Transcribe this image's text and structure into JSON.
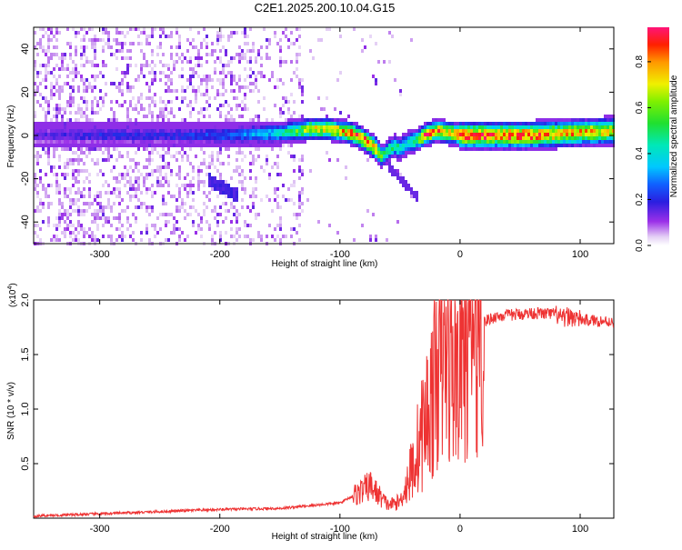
{
  "title": "C2E1.2025.200.10.04.G15",
  "chart_data": [
    {
      "type": "heatmap",
      "xlabel": "Height of straight line (km)",
      "ylabel": "Frequency (Hz)",
      "xlim": [
        -355,
        128
      ],
      "ylim": [
        -50,
        50
      ],
      "x_ticks": [
        -300,
        -200,
        -100,
        0,
        100
      ],
      "y_ticks": [
        -40,
        -20,
        0,
        20,
        40
      ],
      "colorbar": {
        "label": "Normalized spectral amplitude",
        "range": [
          0.0,
          0.95
        ],
        "ticks": [
          "0.0",
          "0.2",
          "0.4",
          "0.6",
          "0.8"
        ],
        "tick_values": [
          0.0,
          0.2,
          0.4,
          0.6,
          0.8
        ]
      },
      "ridge_x": [
        -355,
        -300,
        -250,
        -200,
        -150,
        -125,
        -110,
        -100,
        -90,
        -80,
        -70,
        -65,
        -60,
        -55,
        -50,
        -45,
        -40,
        -35,
        -30,
        -25,
        -20,
        -15,
        -10,
        -5,
        0,
        10,
        30,
        60,
        90,
        128
      ],
      "ridge_frequency": [
        0,
        0,
        0,
        0,
        1,
        3,
        3,
        2,
        1,
        -2,
        -6,
        -10,
        -7,
        -5,
        -6,
        -4,
        -3,
        -2,
        0,
        1,
        2,
        2,
        1,
        1,
        0,
        0,
        0,
        0,
        1,
        2
      ],
      "ridge_amplitude": [
        0.15,
        0.2,
        0.2,
        0.25,
        0.4,
        0.7,
        0.75,
        0.8,
        0.85,
        0.9,
        0.85,
        0.6,
        0.5,
        0.55,
        0.5,
        0.45,
        0.5,
        0.6,
        0.9,
        0.9,
        0.85,
        0.9,
        0.8,
        0.85,
        0.9,
        0.95,
        0.9,
        0.9,
        0.8,
        0.75
      ],
      "grid": false
    },
    {
      "type": "line",
      "xlabel": "Height of straight line (km)",
      "ylabel": "SNR (10 * v/v)",
      "y_multiplier": "(x10",
      "y_multiplier_exponent": "4",
      "y_multiplier_close": ")",
      "xlim": [
        -355,
        128
      ],
      "ylim": [
        0,
        20000
      ],
      "x_ticks": [
        -300,
        -200,
        -100,
        0,
        100
      ],
      "y_ticks": [
        0.5,
        1.0,
        1.5,
        2.0
      ],
      "y_tick_labels": [
        "0.5",
        "1.0",
        "1.5",
        "2.0"
      ],
      "x": [
        -355,
        -300,
        -250,
        -200,
        -150,
        -120,
        -100,
        -90,
        -80,
        -75,
        -70,
        -60,
        -50,
        -45,
        -40,
        -35,
        -30,
        -25,
        -20,
        -18,
        -15,
        -10,
        -5,
        0,
        5,
        10,
        20,
        30,
        40,
        60,
        80,
        85,
        90,
        95,
        100,
        128
      ],
      "values": [
        200,
        400,
        600,
        800,
        900,
        1200,
        1400,
        2000,
        2600,
        3000,
        2400,
        1200,
        1500,
        3000,
        4500,
        6500,
        8500,
        10500,
        12500,
        15500,
        14000,
        15000,
        13500,
        15000,
        16500,
        17500,
        18000,
        18500,
        18600,
        18800,
        18700,
        18200,
        18500,
        18400,
        18200,
        18000
      ],
      "color": "#ee3333",
      "grid": false
    }
  ]
}
